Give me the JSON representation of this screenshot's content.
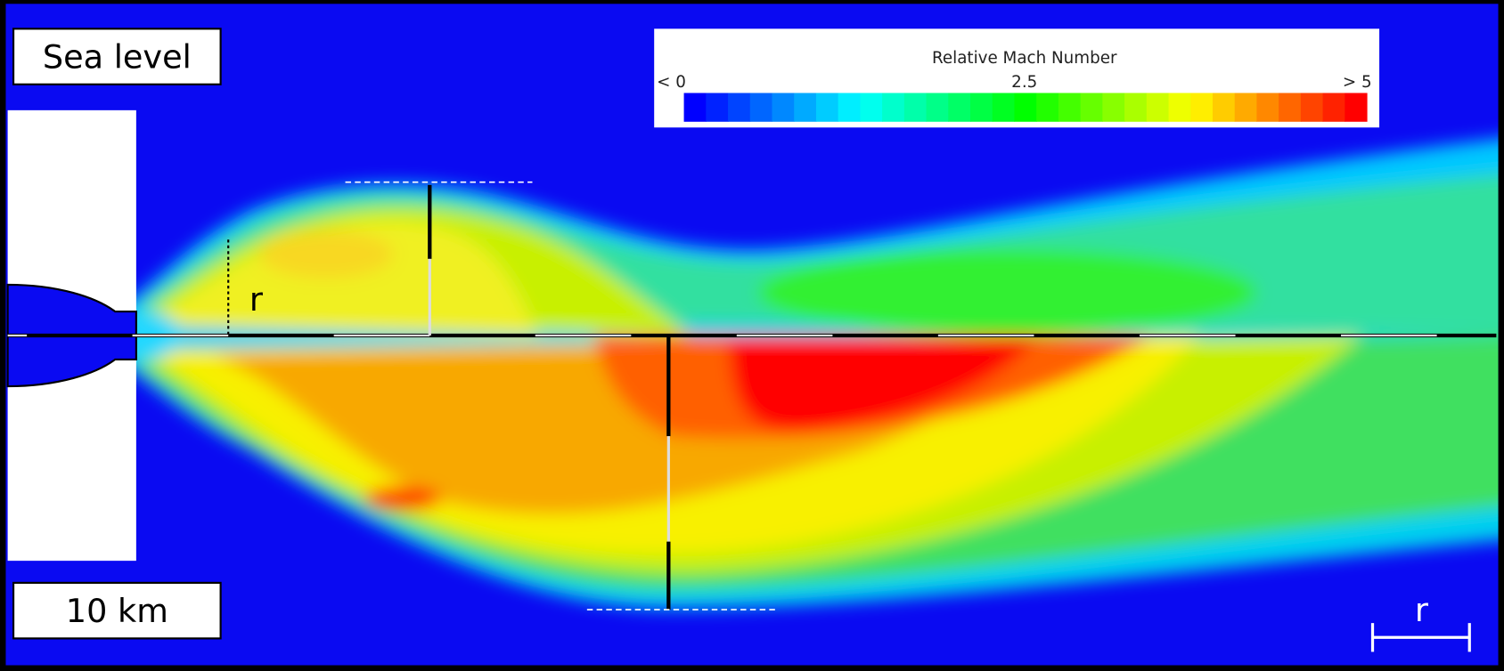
{
  "labels": {
    "top_case": "Sea level",
    "bottom_case": "10 km",
    "radius": "r"
  },
  "colorbar": {
    "title": "Relative Mach Number",
    "min_label": "< 0",
    "mid_label": "2.5",
    "max_label": "> 5"
  },
  "scale_bar": {
    "label": "r"
  }
}
